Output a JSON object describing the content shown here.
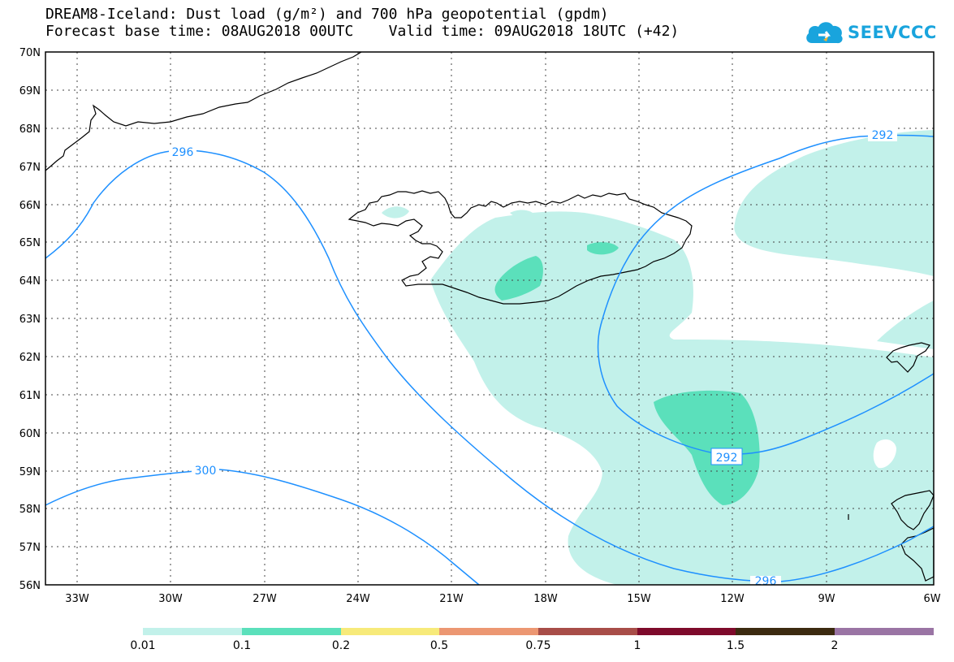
{
  "title": {
    "line1": "DREAM8-Iceland: Dust load (g/m²) and 700 hPa geopotential (gpdm)",
    "line2": "Forecast base time: 08AUG2018 00UTC    Valid time: 09AUG2018 18UTC (+42)"
  },
  "logo": {
    "text": "SEEVCCC",
    "icon": "cloud-icon"
  },
  "map": {
    "projection": "lat-lon",
    "lon_range": [
      -34,
      -6
    ],
    "lat_range": [
      56,
      70
    ],
    "grid": true,
    "lat_labels": [
      "70N",
      "69N",
      "68N",
      "67N",
      "66N",
      "65N",
      "64N",
      "63N",
      "62N",
      "61N",
      "60N",
      "59N",
      "58N",
      "57N",
      "56N"
    ],
    "lon_labels": [
      "33W",
      "30W",
      "27W",
      "24W",
      "21W",
      "18W",
      "15W",
      "12W",
      "9W",
      "6W"
    ],
    "contour_color": "#1e90ff",
    "contour_labels": [
      {
        "text": "296",
        "lon": -29.7,
        "lat": 67.4
      },
      {
        "text": "300",
        "lon": -29.0,
        "lat": 59.0
      },
      {
        "text": "292",
        "lon": -7.9,
        "lat": 67.8
      },
      {
        "text": "292",
        "lon": -12.4,
        "lat": 59.4
      },
      {
        "text": "296",
        "lon": -11.3,
        "lat": 56.05
      }
    ],
    "coastline_color": "#000000"
  },
  "colorbar": {
    "labels": [
      "0.01",
      "0.1",
      "0.2",
      "0.5",
      "0.75",
      "1",
      "1.5",
      "2"
    ],
    "colors": [
      "#c2f1ea",
      "#5be0bb",
      "#f7ea7a",
      "#ec9772",
      "#a84d48",
      "#7e0a2b",
      "#3c2a10",
      "#9a74a4"
    ]
  }
}
